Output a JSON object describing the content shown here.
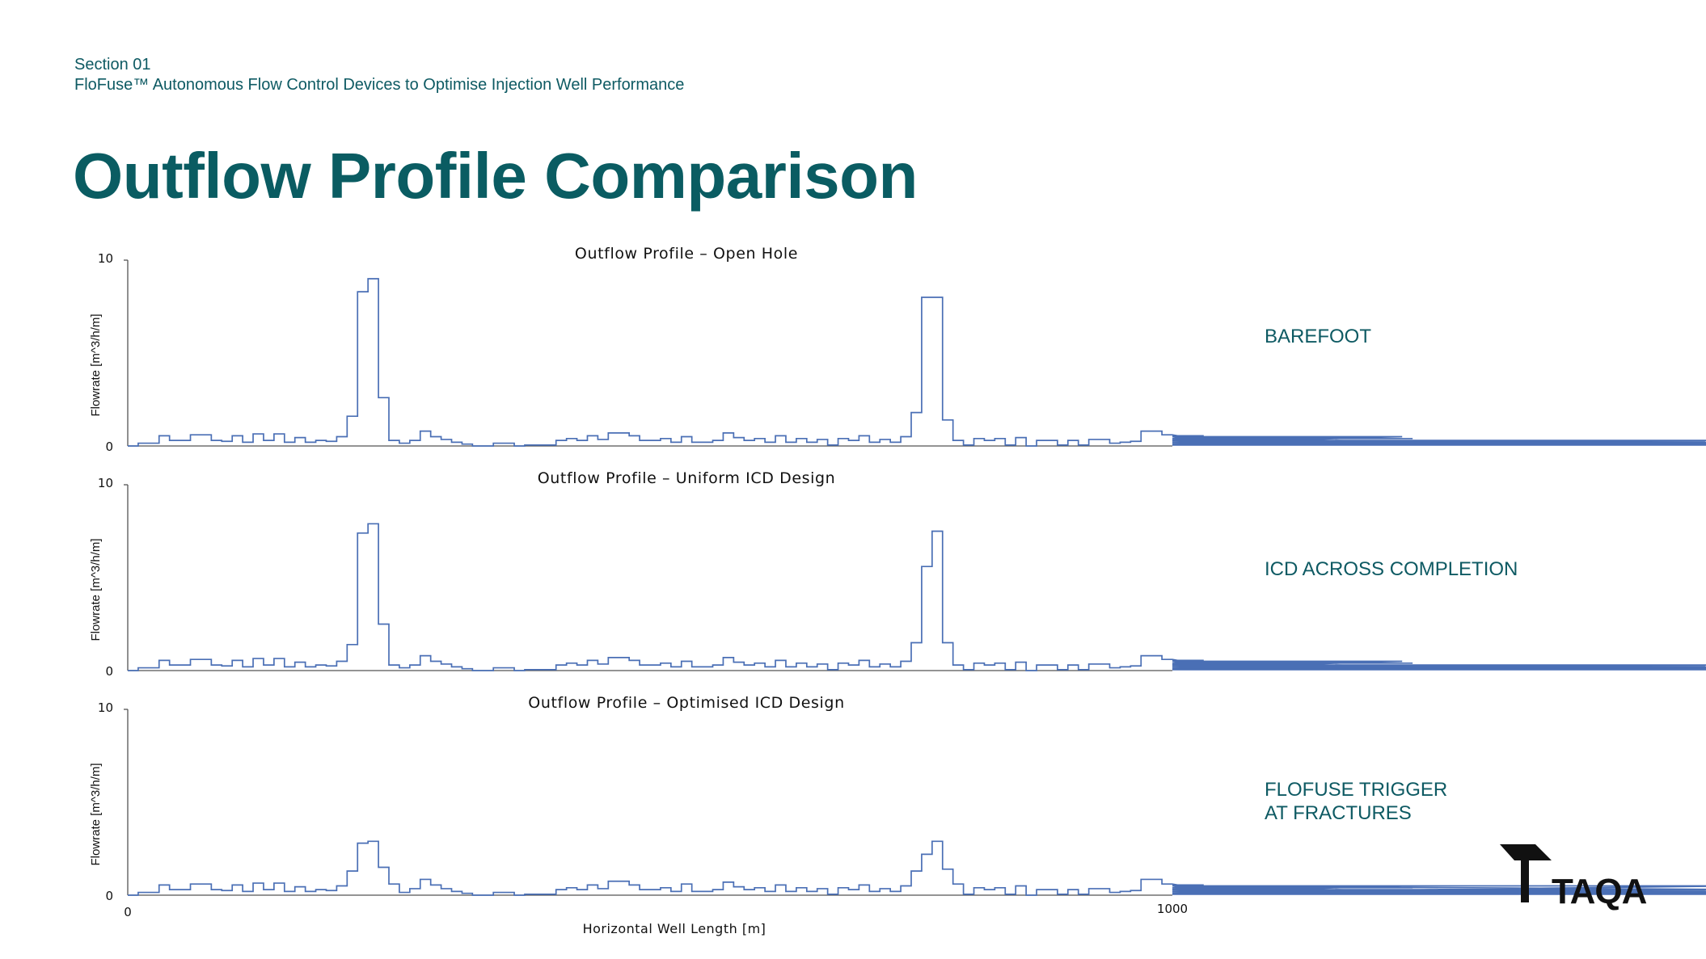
{
  "header": {
    "section": "Section 01",
    "subtitle": "FloFuse™ Autonomous Flow Control Devices to Optimise Injection Well Performance",
    "title": "Outflow Profile Comparison"
  },
  "side_labels": {
    "chart1": "BAREFOOT",
    "chart2": "ICD ACROSS COMPLETION",
    "chart3_line1": "FLOFUSE TRIGGER",
    "chart3_line2": "AT FRACTURES"
  },
  "logo": {
    "text": "TAQA",
    "icon": "taqa-logo-icon"
  },
  "colors": {
    "line": "#4a6fb5",
    "axis": "#555555",
    "teal": "#0e5a63"
  },
  "chart_data": [
    {
      "type": "line",
      "title": "Outflow Profile – Open Hole",
      "ylabel": "Flowrate [m^3/h/m]",
      "xlim": [
        0,
        1000
      ],
      "ylim": [
        0,
        10
      ],
      "ytick_labels": [
        "0",
        "10"
      ],
      "grid": false,
      "series": [
        {
          "step": 10,
          "values": [
            0,
            0.15,
            0.15,
            0.55,
            0.3,
            0.3,
            0.6,
            0.6,
            0.3,
            0.25,
            0.55,
            0.2,
            0.65,
            0.3,
            0.65,
            0.2,
            0.45,
            0.2,
            0.3,
            0.25,
            0.5,
            1.6,
            8.3,
            9.0,
            2.6,
            0.3,
            0.15,
            0.3,
            0.8,
            0.5,
            0.35,
            0.2,
            0.1,
            0,
            0,
            0.15,
            0.15,
            0,
            0.05,
            0.05,
            0.05,
            0.3,
            0.4,
            0.3,
            0.55,
            0.35,
            0.7,
            0.7,
            0.55,
            0.3,
            0.3,
            0.4,
            0.2,
            0.5,
            0.2,
            0.2,
            0.3,
            0.7,
            0.45,
            0.3,
            0.4,
            0.2,
            0.55,
            0.2,
            0.4,
            0.2,
            0.35,
            0.05,
            0.4,
            0.3,
            0.55,
            0.2,
            0.35,
            0.2,
            0.5,
            1.8,
            8.0,
            8.0,
            1.4,
            0.3,
            0.05,
            0.4,
            0.3,
            0.4,
            0.05,
            0.45,
            0,
            0.3,
            0.3,
            0.05,
            0.3,
            0.05,
            0.35,
            0.35,
            0.15,
            0.2,
            0.25,
            0.8,
            0.8,
            0.6,
            0.6,
            0.5,
            0.3,
            0.55,
            0.35,
            0.2,
            0.4,
            0.3,
            0.5,
            0.3,
            0.25,
            0.3,
            0.25,
            0.3,
            0.35,
            0.1,
            0.4,
            0.15,
            0.2,
            0.05,
            0.2,
            0.2,
            0.5,
            0.4,
            0.25,
            0.3,
            0.3,
            0.1,
            0.3,
            0.1,
            0.3,
            0.25,
            0.1,
            0.25,
            0.15,
            0.1,
            0.15,
            0.1,
            0.2,
            0.25,
            0.1,
            0.15,
            0.25,
            0.2,
            0.05,
            0.15,
            0.1,
            0.2,
            0.1,
            0.15,
            0.05,
            0.25,
            0.3,
            0.05,
            0.15,
            0.2,
            0.1,
            0.2,
            0.15,
            0.1,
            0.1,
            0.05
          ]
        }
      ]
    },
    {
      "type": "line",
      "title": "Outflow Profile – Uniform ICD Design",
      "ylabel": "Flowrate [m^3/h/m]",
      "xlim": [
        0,
        1000
      ],
      "ylim": [
        0,
        10
      ],
      "ytick_labels": [
        "0",
        "10"
      ],
      "grid": false,
      "series": [
        {
          "step": 10,
          "values": [
            0,
            0.15,
            0.15,
            0.55,
            0.3,
            0.3,
            0.6,
            0.6,
            0.3,
            0.25,
            0.55,
            0.2,
            0.65,
            0.3,
            0.65,
            0.2,
            0.45,
            0.2,
            0.3,
            0.25,
            0.5,
            1.4,
            7.4,
            7.9,
            2.5,
            0.3,
            0.15,
            0.3,
            0.8,
            0.5,
            0.35,
            0.2,
            0.1,
            0,
            0,
            0.15,
            0.15,
            0,
            0.05,
            0.05,
            0.05,
            0.3,
            0.4,
            0.3,
            0.55,
            0.35,
            0.7,
            0.7,
            0.55,
            0.3,
            0.3,
            0.4,
            0.2,
            0.5,
            0.2,
            0.2,
            0.3,
            0.7,
            0.45,
            0.3,
            0.4,
            0.2,
            0.55,
            0.2,
            0.4,
            0.2,
            0.35,
            0.05,
            0.4,
            0.3,
            0.55,
            0.2,
            0.35,
            0.2,
            0.5,
            1.5,
            5.6,
            7.5,
            1.5,
            0.3,
            0.05,
            0.4,
            0.3,
            0.4,
            0.05,
            0.45,
            0,
            0.3,
            0.3,
            0.05,
            0.3,
            0.05,
            0.35,
            0.35,
            0.15,
            0.2,
            0.25,
            0.8,
            0.8,
            0.6,
            0.6,
            0.5,
            0.3,
            0.55,
            0.35,
            0.2,
            0.4,
            0.3,
            0.5,
            0.3,
            0.25,
            0.3,
            0.25,
            0.3,
            0.35,
            0.1,
            0.4,
            0.15,
            0.2,
            0.05,
            0.2,
            0.2,
            0.5,
            0.4,
            0.25,
            0.3,
            0.3,
            0.1,
            0.3,
            0.1,
            0.3,
            0.25,
            0.1,
            0.25,
            0.15,
            0.1,
            0.15,
            0.1,
            0.2,
            0.25,
            0.1,
            0.15,
            0.25,
            0.2,
            0.05,
            0.15,
            0.1,
            0.2,
            0.1,
            0.15,
            0.05,
            0.25,
            0.3,
            0.05,
            0.15,
            0.2,
            0.1,
            0.2,
            0.15,
            0.1,
            0.1,
            0.05
          ]
        }
      ]
    },
    {
      "type": "line",
      "title": "Outflow Profile – Optimised ICD Design",
      "ylabel": "Flowrate [m^3/h/m]",
      "xlabel": "Horizontal Well Length [m]",
      "xlim": [
        0,
        1000
      ],
      "xtick_labels": [
        "0",
        "1000"
      ],
      "ylim": [
        0,
        10
      ],
      "ytick_labels": [
        "0",
        "10"
      ],
      "grid": false,
      "series": [
        {
          "step": 10,
          "values": [
            0,
            0.15,
            0.15,
            0.55,
            0.3,
            0.3,
            0.6,
            0.6,
            0.3,
            0.25,
            0.55,
            0.2,
            0.65,
            0.3,
            0.65,
            0.2,
            0.45,
            0.2,
            0.3,
            0.25,
            0.5,
            1.3,
            2.8,
            2.9,
            1.5,
            0.6,
            0.15,
            0.35,
            0.85,
            0.55,
            0.35,
            0.2,
            0.1,
            0,
            0,
            0.15,
            0.15,
            0,
            0.05,
            0.05,
            0.05,
            0.3,
            0.4,
            0.3,
            0.55,
            0.35,
            0.75,
            0.75,
            0.55,
            0.3,
            0.3,
            0.4,
            0.2,
            0.6,
            0.2,
            0.2,
            0.3,
            0.7,
            0.45,
            0.3,
            0.4,
            0.2,
            0.55,
            0.2,
            0.4,
            0.2,
            0.35,
            0.05,
            0.4,
            0.3,
            0.55,
            0.2,
            0.35,
            0.2,
            0.5,
            1.3,
            2.2,
            2.9,
            1.4,
            0.6,
            0.05,
            0.4,
            0.3,
            0.4,
            0.05,
            0.5,
            0,
            0.3,
            0.3,
            0.05,
            0.3,
            0.05,
            0.35,
            0.35,
            0.15,
            0.2,
            0.25,
            0.85,
            0.85,
            0.6,
            0.6,
            0.5,
            0.3,
            0.55,
            0.35,
            0.2,
            0.4,
            0.3,
            0.5,
            0.3,
            0.25,
            0.3,
            0.25,
            0.3,
            0.35,
            0.1,
            0.4,
            0.15,
            0.2,
            0.05,
            0.2,
            0.2,
            0.5,
            0.4,
            0.25,
            0.3,
            0.3,
            0.1,
            0.3,
            0.1,
            0.3,
            0.25,
            0.1,
            0.25,
            0.15,
            0.1,
            0.15,
            0.1,
            0.2,
            0.25,
            0.1,
            0.15,
            0.25,
            0.2,
            0.05,
            0.15,
            0.1,
            0.2,
            0.1,
            0.15,
            0.05,
            0.25,
            0.3,
            0.05,
            0.15,
            0.5,
            0.3,
            0.2,
            0.15,
            0.1,
            0.1,
            0.05
          ]
        }
      ]
    }
  ]
}
